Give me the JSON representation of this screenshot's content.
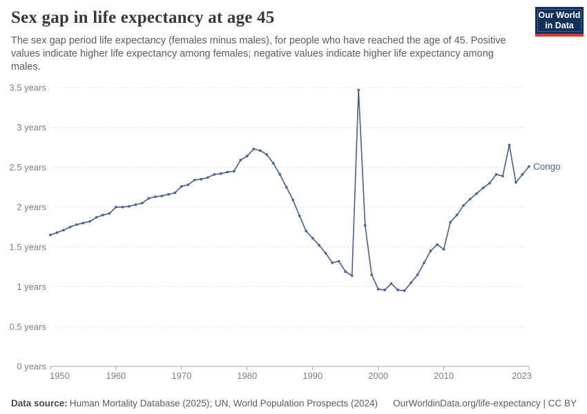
{
  "header": {
    "title": "Sex gap in life expectancy at age 45",
    "subtitle": "The sex gap period life expectancy (females minus males), for people who have reached the age of 45. Positive values indicate higher life expectancy among females; negative values indicate higher life expectancy among males."
  },
  "logo": {
    "line1": "Our World",
    "line2": "in Data"
  },
  "chart_data": {
    "type": "line",
    "title": "Sex gap in life expectancy at age 45",
    "xlabel": "",
    "ylabel": "years",
    "ylim": [
      0,
      3.5
    ],
    "grid": "dashed-horizontal",
    "legend_position": "end-of-line-label",
    "yticks": {
      "values": [
        0,
        0.5,
        1,
        1.5,
        2,
        2.5,
        3,
        3.5
      ],
      "labels": [
        "0 years",
        "0.5 years",
        "1 years",
        "1.5 years",
        "2 years",
        "2.5 years",
        "3 years",
        "3.5 years"
      ]
    },
    "xticks": {
      "values": [
        1950,
        1960,
        1970,
        1980,
        1990,
        2000,
        2010,
        2023
      ],
      "labels": [
        "1950",
        "1960",
        "1970",
        "1980",
        "1990",
        "2000",
        "2010",
        "2023"
      ]
    },
    "series": [
      {
        "name": "Congo",
        "color": "#4a659c",
        "years": [
          1950,
          1951,
          1952,
          1953,
          1954,
          1955,
          1956,
          1957,
          1958,
          1959,
          1960,
          1961,
          1962,
          1963,
          1964,
          1965,
          1966,
          1967,
          1968,
          1969,
          1970,
          1971,
          1972,
          1973,
          1974,
          1975,
          1976,
          1977,
          1978,
          1979,
          1980,
          1981,
          1982,
          1983,
          1984,
          1985,
          1986,
          1987,
          1988,
          1989,
          1990,
          1991,
          1992,
          1993,
          1994,
          1995,
          1996,
          1997,
          1998,
          1999,
          2000,
          2001,
          2002,
          2003,
          2004,
          2005,
          2006,
          2007,
          2008,
          2009,
          2010,
          2011,
          2012,
          2013,
          2014,
          2015,
          2016,
          2017,
          2018,
          2019,
          2020,
          2021,
          2022,
          2023
        ],
        "values": [
          1.65,
          1.68,
          1.71,
          1.75,
          1.78,
          1.8,
          1.82,
          1.87,
          1.9,
          1.92,
          2.0,
          2.0,
          2.01,
          2.03,
          2.05,
          2.11,
          2.13,
          2.14,
          2.16,
          2.18,
          2.26,
          2.28,
          2.34,
          2.35,
          2.37,
          2.41,
          2.42,
          2.44,
          2.45,
          2.59,
          2.64,
          2.73,
          2.71,
          2.66,
          2.55,
          2.41,
          2.25,
          2.09,
          1.89,
          1.7,
          1.61,
          1.52,
          1.42,
          1.3,
          1.32,
          1.19,
          1.14,
          3.47,
          1.77,
          1.15,
          0.97,
          0.96,
          1.04,
          0.96,
          0.95,
          1.05,
          1.15,
          1.3,
          1.45,
          1.53,
          1.47,
          1.81,
          1.9,
          2.02,
          2.1,
          2.17,
          2.24,
          2.3,
          2.41,
          2.39,
          2.78,
          2.31,
          2.41,
          2.51
        ]
      }
    ]
  },
  "footer": {
    "datasource_label": "Data source:",
    "datasource_text": "Human Mortality Database (2025); UN, World Population Prospects (2024)",
    "attribution": "OurWorldinData.org/life-expectancy | CC BY"
  }
}
